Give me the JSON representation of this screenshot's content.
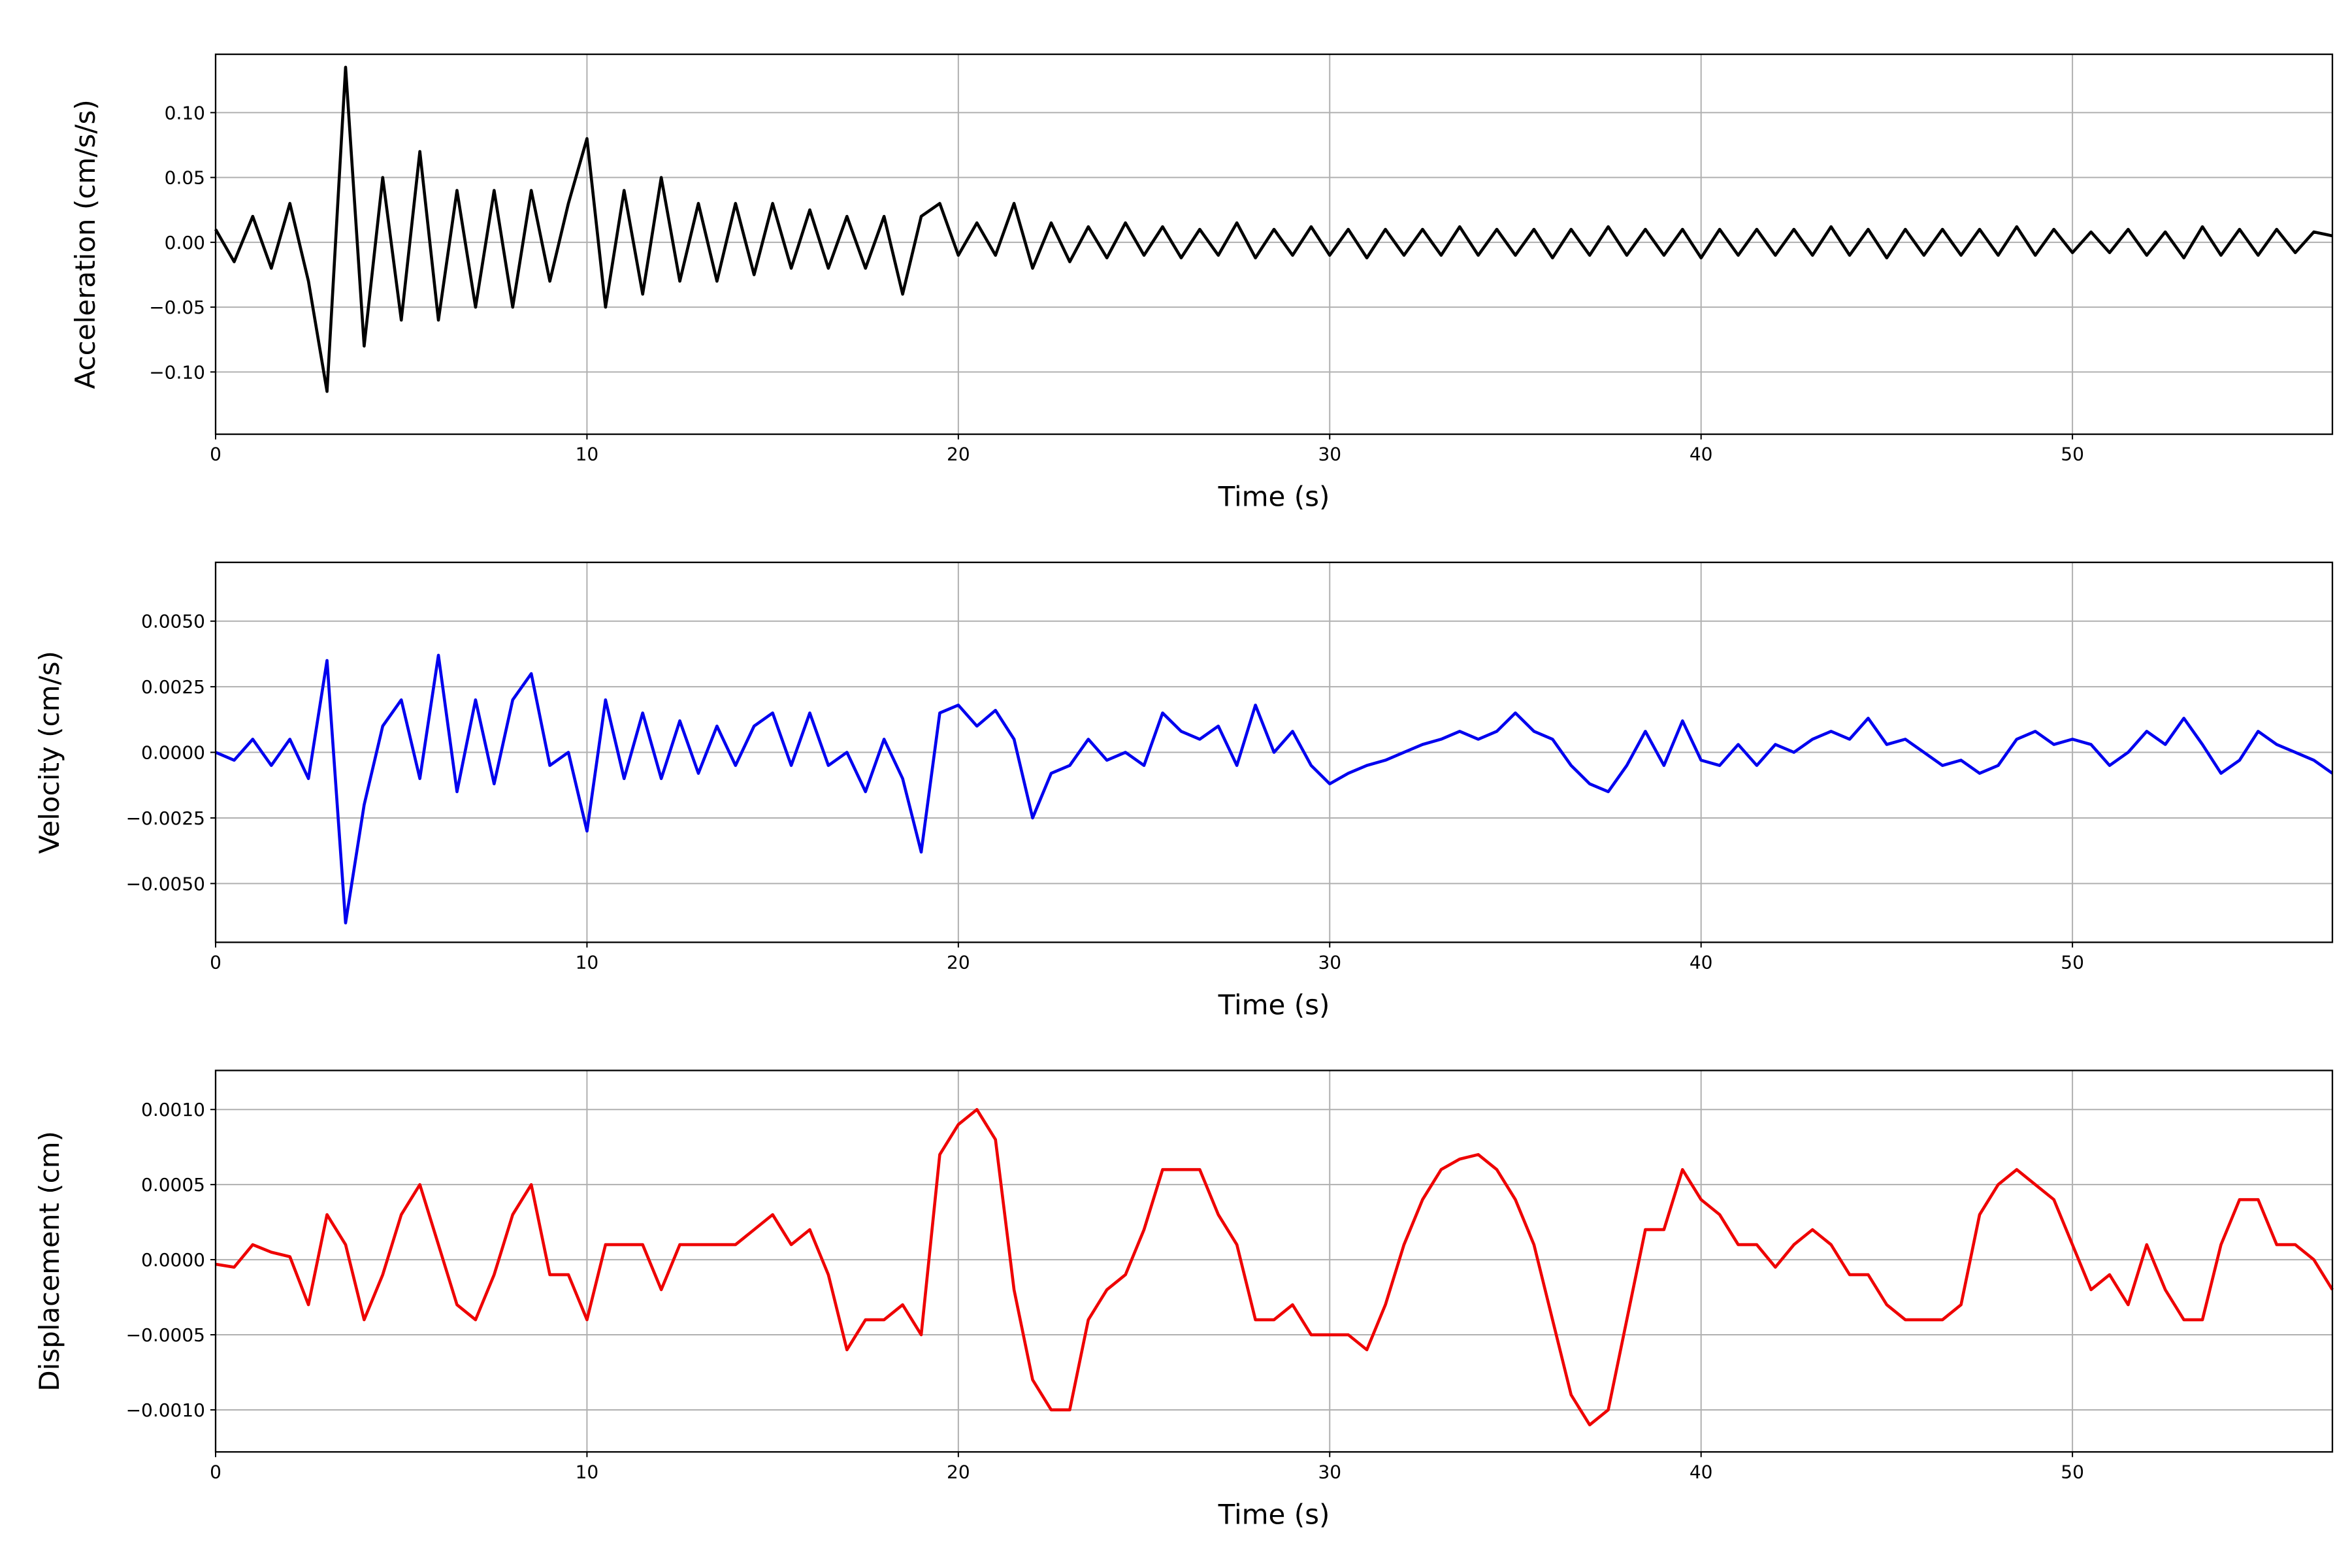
{
  "chart_data": [
    {
      "type": "line",
      "xlabel": "Time (s)",
      "ylabel": "Acceleration (cm/s/s)",
      "color": "#000000",
      "grid": true,
      "xlim": [
        0,
        57
      ],
      "ylim": [
        -0.148,
        0.145
      ],
      "xticks": [
        0,
        10,
        20,
        30,
        40,
        50
      ],
      "yticks": [
        {
          "value": -0.1,
          "label": "−0.10"
        },
        {
          "value": -0.05,
          "label": "−0.05"
        },
        {
          "value": 0,
          "label": "0.00"
        },
        0.05,
        {
          "value": 0.1,
          "label": "0.10"
        }
      ],
      "x": [
        0,
        0.5,
        1,
        1.5,
        2,
        2.5,
        3,
        3.5,
        4,
        4.5,
        5,
        5.5,
        6,
        6.5,
        7,
        7.5,
        8,
        8.5,
        9,
        9.5,
        10,
        10.5,
        11,
        11.5,
        12,
        12.5,
        13,
        13.5,
        14,
        14.5,
        15,
        15.5,
        16,
        16.5,
        17,
        17.5,
        18,
        18.5,
        19,
        19.5,
        20,
        20.5,
        21,
        21.5,
        22,
        22.5,
        23,
        23.5,
        24,
        24.5,
        25,
        25.5,
        26,
        26.5,
        27,
        27.5,
        28,
        28.5,
        29,
        29.5,
        30,
        30.5,
        31,
        31.5,
        32,
        32.5,
        33,
        33.5,
        34,
        34.5,
        35,
        35.5,
        36,
        36.5,
        37,
        37.5,
        38,
        38.5,
        39,
        39.5,
        40,
        40.5,
        41,
        41.5,
        42,
        42.5,
        43,
        43.5,
        44,
        44.5,
        45,
        45.5,
        46,
        46.5,
        47,
        47.5,
        48,
        48.5,
        49,
        49.5,
        50,
        50.5,
        51,
        51.5,
        52,
        52.5,
        53,
        53.5,
        54,
        54.5,
        55,
        55.5,
        56,
        56.5,
        57
      ],
      "values": [
        0.01,
        -0.015,
        0.02,
        -0.02,
        0.03,
        -0.03,
        -0.115,
        0.135,
        -0.08,
        0.05,
        -0.06,
        0.07,
        -0.06,
        0.04,
        -0.05,
        0.04,
        -0.05,
        0.04,
        -0.03,
        0.03,
        0.08,
        -0.05,
        0.04,
        -0.04,
        0.05,
        -0.03,
        0.03,
        -0.03,
        0.03,
        -0.025,
        0.03,
        -0.02,
        0.025,
        -0.02,
        0.02,
        -0.02,
        0.02,
        -0.04,
        0.02,
        0.03,
        -0.01,
        0.015,
        -0.01,
        0.03,
        -0.02,
        0.015,
        -0.015,
        0.012,
        -0.012,
        0.015,
        -0.01,
        0.012,
        -0.012,
        0.01,
        -0.01,
        0.015,
        -0.012,
        0.01,
        -0.01,
        0.012,
        -0.01,
        0.01,
        -0.012,
        0.01,
        -0.01,
        0.01,
        -0.01,
        0.012,
        -0.01,
        0.01,
        -0.01,
        0.01,
        -0.012,
        0.01,
        -0.01,
        0.012,
        -0.01,
        0.01,
        -0.01,
        0.01,
        -0.012,
        0.01,
        -0.01,
        0.01,
        -0.01,
        0.01,
        -0.01,
        0.012,
        -0.01,
        0.01,
        -0.012,
        0.01,
        -0.01,
        0.01,
        -0.01,
        0.01,
        -0.01,
        0.012,
        -0.01,
        0.01,
        -0.008,
        0.008,
        -0.008,
        0.01,
        -0.01,
        0.008,
        -0.012,
        0.012,
        -0.01,
        0.01,
        -0.01,
        0.01,
        -0.008,
        0.008,
        0.005
      ]
    },
    {
      "type": "line",
      "xlabel": "Time (s)",
      "ylabel": "Velocity (cm/s)",
      "color": "#0000ee",
      "grid": true,
      "xlim": [
        0,
        57
      ],
      "ylim": [
        -0.00724,
        0.00724
      ],
      "xticks": [
        0,
        10,
        20,
        30,
        40,
        50
      ],
      "yticks": [
        {
          "value": -0.005,
          "label": "−0.0050"
        },
        {
          "value": -0.0025,
          "label": "−0.0025"
        },
        {
          "value": 0,
          "label": "0.0000"
        },
        0.0025,
        {
          "value": 0.005,
          "label": "0.0050"
        }
      ],
      "x": [
        0,
        0.5,
        1,
        1.5,
        2,
        2.5,
        3,
        3.5,
        4,
        4.5,
        5,
        5.5,
        6,
        6.5,
        7,
        7.5,
        8,
        8.5,
        9,
        9.5,
        10,
        10.5,
        11,
        11.5,
        12,
        12.5,
        13,
        13.5,
        14,
        14.5,
        15,
        15.5,
        16,
        16.5,
        17,
        17.5,
        18,
        18.5,
        19,
        19.5,
        20,
        20.5,
        21,
        21.5,
        22,
        22.5,
        23,
        23.5,
        24,
        24.5,
        25,
        25.5,
        26,
        26.5,
        27,
        27.5,
        28,
        28.5,
        29,
        29.5,
        30,
        30.5,
        31,
        31.5,
        32,
        32.5,
        33,
        33.5,
        34,
        34.5,
        35,
        35.5,
        36,
        36.5,
        37,
        37.5,
        38,
        38.5,
        39,
        39.5,
        40,
        40.5,
        41,
        41.5,
        42,
        42.5,
        43,
        43.5,
        44,
        44.5,
        45,
        45.5,
        46,
        46.5,
        47,
        47.5,
        48,
        48.5,
        49,
        49.5,
        50,
        50.5,
        51,
        51.5,
        52,
        52.5,
        53,
        53.5,
        54,
        54.5,
        55,
        55.5,
        56,
        56.5,
        57
      ],
      "values": [
        0,
        -0.0003,
        0.0005,
        -0.0005,
        0.0005,
        -0.001,
        0.0035,
        -0.0065,
        -0.002,
        0.001,
        0.002,
        -0.001,
        0.0037,
        -0.0015,
        0.002,
        -0.0012,
        0.002,
        0.003,
        -0.0005,
        0,
        -0.003,
        0.002,
        -0.001,
        0.0015,
        -0.001,
        0.0012,
        -0.0008,
        0.001,
        -0.0005,
        0.001,
        0.0015,
        -0.0005,
        0.0015,
        -0.0005,
        0,
        -0.0015,
        0.0005,
        -0.001,
        -0.0038,
        0.0015,
        0.0018,
        0.001,
        0.0016,
        0.0005,
        -0.0025,
        -0.0008,
        -0.0005,
        0.0005,
        -0.0003,
        0,
        -0.0005,
        0.0015,
        0.0008,
        0.0005,
        0.001,
        -0.0005,
        0.0018,
        0,
        0.0008,
        -0.0005,
        -0.0012,
        -0.0008,
        -0.0005,
        -0.0003,
        0,
        0.0003,
        0.0005,
        0.0008,
        0.0005,
        0.0008,
        0.0015,
        0.0008,
        0.0005,
        -0.0005,
        -0.0012,
        -0.0015,
        -0.0005,
        0.0008,
        -0.0005,
        0.0012,
        -0.0003,
        -0.0005,
        0.0003,
        -0.0005,
        0.0003,
        0,
        0.0005,
        0.0008,
        0.0005,
        0.0013,
        0.0003,
        0.0005,
        0,
        -0.0005,
        -0.0003,
        -0.0008,
        -0.0005,
        0.0005,
        0.0008,
        0.0003,
        0.0005,
        0.0003,
        -0.0005,
        0,
        0.0008,
        0.0003,
        0.0013,
        0.0003,
        -0.0008,
        -0.0003,
        0.0008,
        0.0003,
        0,
        -0.0003,
        -0.0008
      ]
    },
    {
      "type": "line",
      "xlabel": "Time (s)",
      "ylabel": "Displacement (cm)",
      "color": "#ee0000",
      "grid": true,
      "xlim": [
        0,
        57
      ],
      "ylim": [
        -0.00128,
        0.00126
      ],
      "xticks": [
        0,
        10,
        20,
        30,
        40,
        50
      ],
      "yticks": [
        {
          "value": -0.001,
          "label": "−0.0010"
        },
        {
          "value": -0.0005,
          "label": "−0.0005"
        },
        {
          "value": 0,
          "label": "0.0000"
        },
        0.0005,
        {
          "value": 0.001,
          "label": "0.0010"
        }
      ],
      "x": [
        0,
        0.5,
        1,
        1.5,
        2,
        2.5,
        3,
        3.5,
        4,
        4.5,
        5,
        5.5,
        6,
        6.5,
        7,
        7.5,
        8,
        8.5,
        9,
        9.5,
        10,
        10.5,
        11,
        11.5,
        12,
        12.5,
        13,
        13.5,
        14,
        14.5,
        15,
        15.5,
        16,
        16.5,
        17,
        17.5,
        18,
        18.5,
        19,
        19.5,
        20,
        20.5,
        21,
        21.5,
        22,
        22.5,
        23,
        23.5,
        24,
        24.5,
        25,
        25.5,
        26,
        26.5,
        27,
        27.5,
        28,
        28.5,
        29,
        29.5,
        30,
        30.5,
        31,
        31.5,
        32,
        32.5,
        33,
        33.5,
        34,
        34.5,
        35,
        35.5,
        36,
        36.5,
        37,
        37.5,
        38,
        38.5,
        39,
        39.5,
        40,
        40.5,
        41,
        41.5,
        42,
        42.5,
        43,
        43.5,
        44,
        44.5,
        45,
        45.5,
        46,
        46.5,
        47,
        47.5,
        48,
        48.5,
        49,
        49.5,
        50,
        50.5,
        51,
        51.5,
        52,
        52.5,
        53,
        53.5,
        54,
        54.5,
        55,
        55.5,
        56,
        56.5,
        57
      ],
      "values": [
        -3e-05,
        -5e-05,
        0.0001,
        5e-05,
        2e-05,
        -0.0003,
        0.0003,
        0.0001,
        -0.0004,
        -0.0001,
        0.0003,
        0.0005,
        0.0001,
        -0.0003,
        -0.0004,
        -0.0001,
        0.0003,
        0.0005,
        -0.0001,
        -0.0001,
        -0.0004,
        0.0001,
        0.0001,
        0.0001,
        -0.0002,
        0.0001,
        0.0001,
        0.0001,
        0.0001,
        0.0002,
        0.0003,
        0.0001,
        0.0002,
        -0.0001,
        -0.0006,
        -0.0004,
        -0.0004,
        -0.0003,
        -0.0005,
        0.0007,
        0.0009,
        0.001,
        0.0008,
        -0.0002,
        -0.0008,
        -0.001,
        -0.001,
        -0.0004,
        -0.0002,
        -0.0001,
        0.0002,
        0.0006,
        0.0006,
        0.0006,
        0.0003,
        0.0001,
        -0.0004,
        -0.0004,
        -0.0003,
        -0.0005,
        -0.0005,
        -0.0005,
        -0.0006,
        -0.0003,
        0.0001,
        0.0004,
        0.0006,
        0.00067,
        0.0007,
        0.0006,
        0.0004,
        0.0001,
        -0.0004,
        -0.0009,
        -0.0011,
        -0.001,
        -0.0004,
        0.0002,
        0.0002,
        0.0006,
        0.0004,
        0.0003,
        0.0001,
        0.0001,
        -5e-05,
        0.0001,
        0.0002,
        0.0001,
        -0.0001,
        -0.0001,
        -0.0003,
        -0.0004,
        -0.0004,
        -0.0004,
        -0.0003,
        0.0003,
        0.0005,
        0.0006,
        0.0005,
        0.0004,
        0.0001,
        -0.0002,
        -0.0001,
        -0.0003,
        0.0001,
        -0.0002,
        -0.0004,
        -0.0004,
        0.0001,
        0.0004,
        0.0004,
        0.0001,
        0.0001,
        0,
        -0.0002
      ]
    }
  ]
}
